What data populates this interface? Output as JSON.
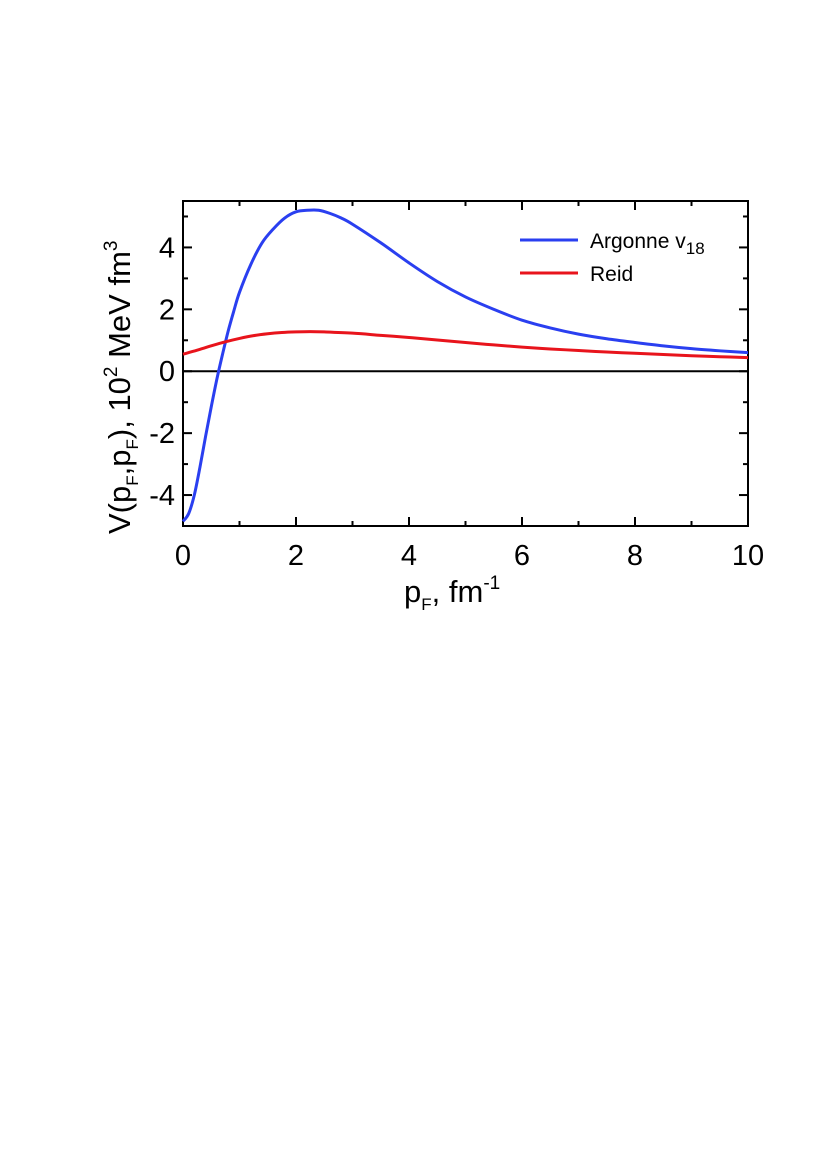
{
  "chart_data": {
    "type": "line",
    "title": "",
    "xlabel": {
      "base": "p",
      "sub": "F",
      "rest": ", fm",
      "sup": "-1"
    },
    "ylabel": {
      "part1": "V(p",
      "sub1": "F",
      "part2": ",p",
      "sub2": "F",
      "part3": "),  10",
      "sup1": "2",
      "part4": " MeV fm",
      "sup2": "3"
    },
    "xlim": [
      0,
      10
    ],
    "ylim": [
      -5,
      5.5
    ],
    "xticks": [
      0,
      2,
      4,
      6,
      8,
      10
    ],
    "xtick_labels": [
      "0",
      "2",
      "4",
      "6",
      "8",
      "10"
    ],
    "yticks": [
      -4,
      -2,
      0,
      2,
      4
    ],
    "ytick_labels": [
      "-4",
      "-2",
      "0",
      "2",
      "4"
    ],
    "grid": false,
    "legend_position": "top-right",
    "zero_line": true,
    "series": [
      {
        "name": "Argonne v",
        "name_sub": "18",
        "color": "#2a3ff0",
        "x": [
          0.0,
          0.1,
          0.2,
          0.3,
          0.4,
          0.5,
          0.6,
          0.7,
          0.8,
          0.9,
          1.0,
          1.2,
          1.4,
          1.6,
          1.8,
          2.0,
          2.2,
          2.4,
          2.6,
          2.8,
          3.0,
          3.5,
          4.0,
          4.5,
          5.0,
          5.5,
          6.0,
          6.5,
          7.0,
          7.5,
          8.0,
          8.5,
          9.0,
          9.5,
          10.0
        ],
        "y": [
          -4.85,
          -4.6,
          -4.0,
          -3.1,
          -2.1,
          -1.15,
          -0.25,
          0.55,
          1.3,
          1.95,
          2.55,
          3.45,
          4.15,
          4.6,
          4.95,
          5.15,
          5.2,
          5.2,
          5.1,
          4.95,
          4.75,
          4.15,
          3.5,
          2.9,
          2.4,
          2.0,
          1.65,
          1.4,
          1.2,
          1.05,
          0.93,
          0.82,
          0.73,
          0.66,
          0.6
        ]
      },
      {
        "name": "Reid",
        "color": "#e8141c",
        "x": [
          0.0,
          0.25,
          0.5,
          0.75,
          1.0,
          1.25,
          1.5,
          1.75,
          2.0,
          2.25,
          2.5,
          3.0,
          3.5,
          4.0,
          4.5,
          5.0,
          5.5,
          6.0,
          6.5,
          7.0,
          7.5,
          8.0,
          8.5,
          9.0,
          9.5,
          10.0
        ],
        "y": [
          0.55,
          0.68,
          0.82,
          0.95,
          1.06,
          1.15,
          1.21,
          1.25,
          1.27,
          1.28,
          1.27,
          1.23,
          1.16,
          1.09,
          1.01,
          0.93,
          0.85,
          0.78,
          0.72,
          0.67,
          0.62,
          0.58,
          0.54,
          0.5,
          0.47,
          0.44
        ]
      }
    ]
  }
}
